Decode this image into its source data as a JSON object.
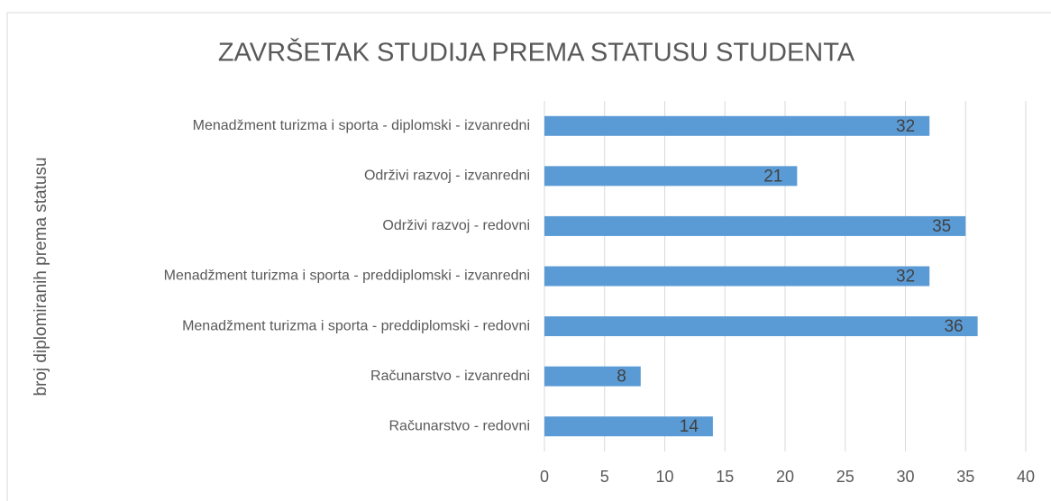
{
  "chart_data": {
    "type": "barh",
    "title": "ZAVRŠETAK STUDIJA PREMA STATUSU STUDENTA",
    "y_label": "broj diplomiranih prema statusu",
    "categories": [
      "Menadžment turizma i sporta - diplomski - izvanredni",
      "Održivi razvoj - izvanredni",
      "Održivi razvoj - redovni",
      "Menadžment turizma i sporta - preddiplomski - izvanredni",
      "Menadžment turizma i sporta - preddiplomski - redovni",
      "Računarstvo - izvanredni",
      "Računarstvo - redovni"
    ],
    "values": [
      32,
      21,
      35,
      32,
      36,
      8,
      14
    ],
    "color": "#5b9bd5",
    "xlim": [
      0,
      40
    ],
    "xticks": [
      0,
      5,
      10,
      15,
      20,
      25,
      30,
      35,
      40
    ],
    "grid": true
  }
}
